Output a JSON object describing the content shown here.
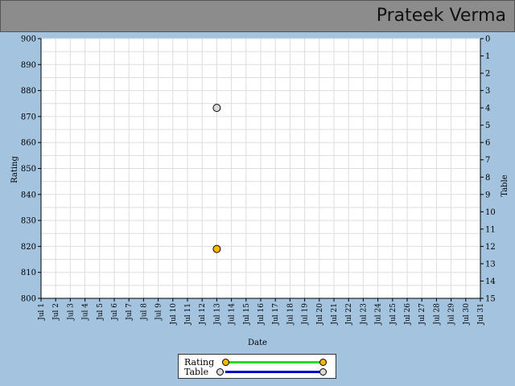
{
  "header": {
    "player_name": "Prateek Verma"
  },
  "chart_data": {
    "type": "scatter",
    "xlabel": "Date",
    "ylabel": "Rating",
    "y2label": "Table",
    "x_ticks": [
      "Jul 1",
      "Jul 2",
      "Jul 3",
      "Jul 4",
      "Jul 5",
      "Jul 6",
      "Jul 7",
      "Jul 8",
      "Jul 9",
      "Jul 10",
      "Jul 11",
      "Jul 12",
      "Jul 13",
      "Jul 14",
      "Jul 15",
      "Jul 16",
      "Jul 17",
      "Jul 18",
      "Jul 19",
      "Jul 20",
      "Jul 21",
      "Jul 22",
      "Jul 23",
      "Jul 24",
      "Jul 25",
      "Jul 26",
      "Jul 27",
      "Jul 28",
      "Jul 29",
      "Jul 30",
      "Jul 31"
    ],
    "ylim": [
      800,
      900
    ],
    "y_ticks": [
      800,
      810,
      820,
      830,
      840,
      850,
      860,
      870,
      880,
      890,
      900
    ],
    "y2lim": [
      0,
      15
    ],
    "y2_ticks": [
      0,
      1,
      2,
      3,
      4,
      5,
      6,
      7,
      8,
      9,
      10,
      11,
      12,
      13,
      14,
      15
    ],
    "y2_inverted": true,
    "grid": true,
    "legend_position": "bottom-center",
    "series": [
      {
        "name": "Rating",
        "axis": "left",
        "x": [
          "Jul 13"
        ],
        "values": [
          819
        ],
        "line_color": "#22dd22",
        "marker_color": "#f5b700"
      },
      {
        "name": "Table",
        "axis": "right",
        "x": [
          "Jul 13"
        ],
        "values": [
          4
        ],
        "line_color": "#0000cc",
        "marker_color": "#d9d9d9"
      }
    ]
  }
}
